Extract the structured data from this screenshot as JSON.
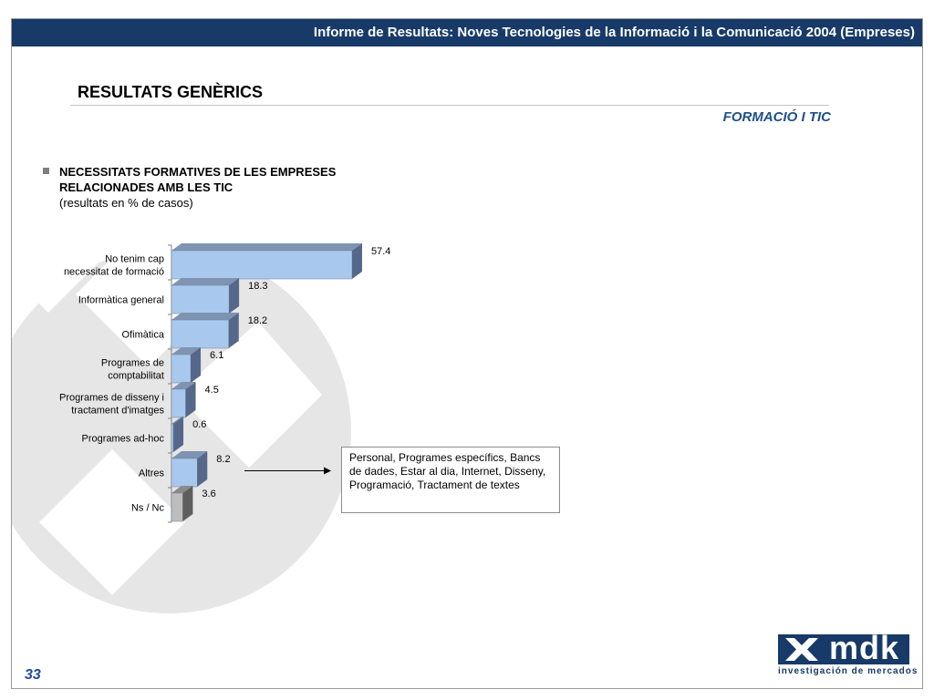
{
  "header": {
    "title": "Informe de Resultats: Noves Tecnologies de la Informació i la Comunicació 2004 (Empreses)"
  },
  "page": {
    "section_title": "RESULTATS GENÈRICS",
    "section_subtitle": "FORMACIÓ I TIC",
    "page_number": "33"
  },
  "chart_heading": {
    "line1": "NECESSITATS FORMATIVES DE LES EMPRESES",
    "line2": "RELACIONADES AMB LES TIC",
    "note": "(resultats en % de casos)"
  },
  "callout": {
    "text": "Personal, Programes específics, Bancs de dades, Estar al dia, Internet, Disseny, Programació, Tractament de textes"
  },
  "logo": {
    "name": "mdk",
    "tagline": "investigación de mercados"
  },
  "colors": {
    "brand": "#173a68",
    "bar": "#a9c8ee",
    "bar_ns": "#bdbdbd",
    "accent_text": "#1f4e8c"
  },
  "chart_data": {
    "type": "bar",
    "orientation": "horizontal",
    "categories": [
      [
        "No tenim cap",
        "necessitat de formació"
      ],
      [
        "Informàtica general"
      ],
      [
        "Ofimàtica"
      ],
      [
        "Programes de",
        "comptabilitat"
      ],
      [
        "Programes de disseny i",
        "tractament d'imatges"
      ],
      [
        "Programes ad-hoc"
      ],
      [
        "Altres"
      ],
      [
        "Ns / Nc"
      ]
    ],
    "values": [
      57.4,
      18.3,
      18.2,
      6.1,
      4.5,
      0.6,
      8.2,
      3.6
    ],
    "value_labels": [
      "57.4",
      "18.3",
      "18.2",
      "6.1",
      "4.5",
      "0.6",
      "8.2",
      "3.6"
    ],
    "xlim": [
      0,
      60
    ],
    "grid": false,
    "style": "3d"
  }
}
